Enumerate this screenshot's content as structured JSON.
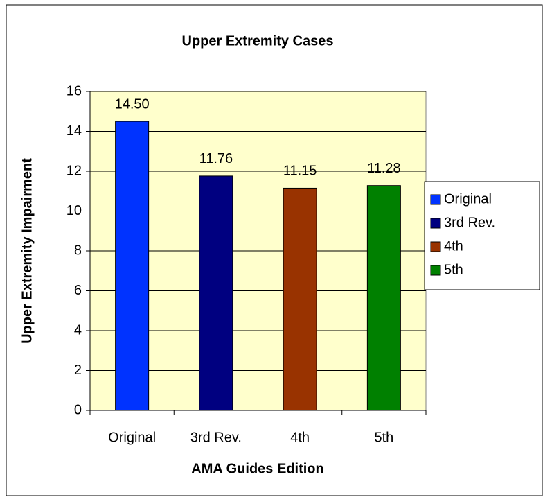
{
  "chart_data": {
    "type": "bar",
    "title": "Upper Extremity Cases",
    "x_label": "AMA Guides Edition",
    "y_label": "Upper Extremity Impairment",
    "categories": [
      "Original",
      "3rd Rev.",
      "4th",
      "5th"
    ],
    "values": [
      14.5,
      11.76,
      11.15,
      11.28
    ],
    "value_labels": [
      "14.50",
      "11.76",
      "11.15",
      "11.28"
    ],
    "colors": [
      "#0033ff",
      "#000080",
      "#993300",
      "#008000"
    ],
    "ylim": [
      0,
      16
    ],
    "yticks": [
      0,
      2,
      4,
      6,
      8,
      10,
      12,
      14,
      16
    ],
    "grid": true,
    "legend": "right",
    "plot_background": "#ffffcc"
  }
}
